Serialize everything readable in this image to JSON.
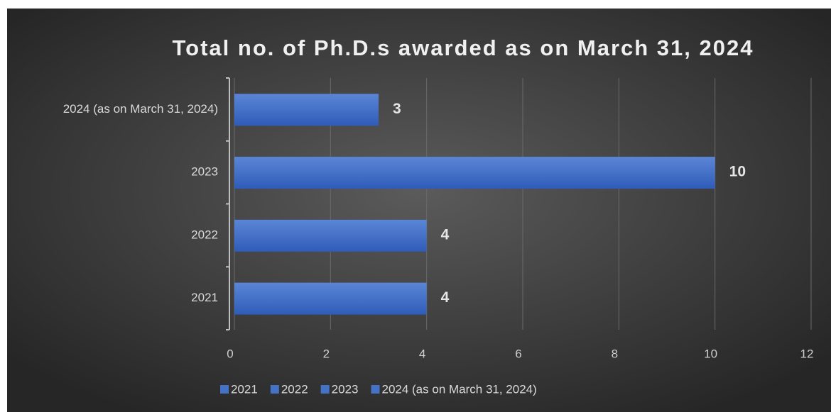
{
  "chart_data": {
    "type": "bar",
    "orientation": "horizontal",
    "title": "Total no. of Ph.D.s awarded as on March 31, 2024",
    "categories": [
      "2021",
      "2022",
      "2023",
      "2024 (as on March 31, 2024)"
    ],
    "values": [
      4,
      4,
      10,
      3
    ],
    "color": "#4472c4",
    "xlim": [
      0,
      12
    ],
    "xticks": [
      0,
      2,
      4,
      6,
      8,
      10,
      12
    ],
    "grid": true,
    "legend": "bottom"
  }
}
